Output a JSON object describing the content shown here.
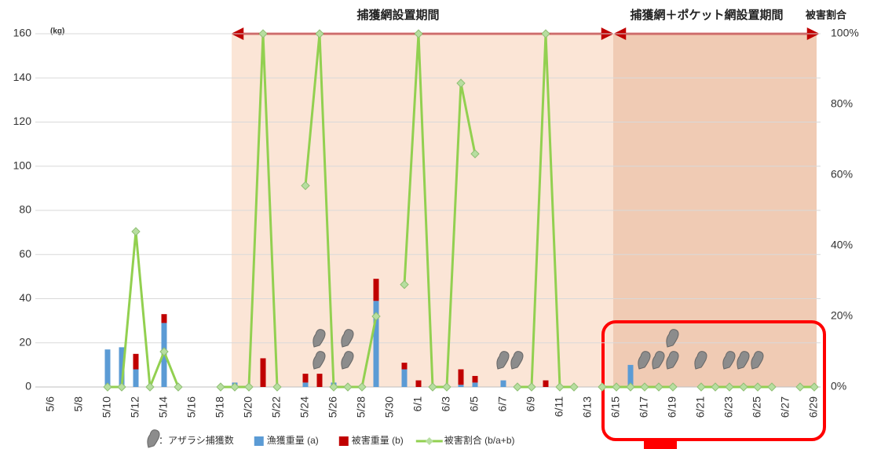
{
  "chart_data": {
    "type": "bar-line",
    "period_labels": [
      "捕獲網設置期間",
      "捕獲網＋ポケット網設置期間"
    ],
    "y_label": "(kg)",
    "y2_label": "被害割合",
    "categories": [
      "5/6",
      null,
      "5/8",
      null,
      "5/10",
      null,
      "5/12",
      null,
      "5/14",
      null,
      "5/16",
      null,
      "5/18",
      null,
      "5/20",
      null,
      "5/22",
      null,
      "5/24",
      null,
      "5/26",
      null,
      "5/28",
      null,
      "5/30",
      null,
      "6/1",
      null,
      "6/3",
      null,
      "6/5",
      null,
      "6/7",
      null,
      "6/9",
      null,
      "6/11",
      null,
      "6/13",
      null,
      "6/15",
      null,
      "6/17",
      null,
      "6/19",
      null,
      "6/21",
      null,
      "6/23",
      null,
      "6/25",
      null,
      "6/27",
      null,
      "6/29"
    ],
    "series": [
      {
        "name": "：アザラシ捕獲数",
        "color": "#8c8c8c",
        "kind": "icon",
        "values": [
          null,
          null,
          null,
          null,
          null,
          null,
          null,
          null,
          null,
          null,
          null,
          null,
          null,
          null,
          null,
          null,
          null,
          null,
          null,
          2,
          null,
          2,
          null,
          null,
          null,
          null,
          null,
          null,
          null,
          null,
          null,
          null,
          1,
          1,
          null,
          null,
          null,
          null,
          null,
          null,
          null,
          null,
          1,
          1,
          2,
          null,
          1,
          null,
          1,
          1,
          1,
          null,
          null,
          null,
          null
        ]
      },
      {
        "name": "漁獲重量 (a)",
        "color": "#5b9bd5",
        "kind": "bar",
        "values": [
          null,
          null,
          null,
          null,
          17,
          18,
          8,
          null,
          29,
          null,
          null,
          null,
          null,
          2,
          null,
          null,
          null,
          null,
          2,
          null,
          2,
          null,
          null,
          39,
          null,
          8,
          null,
          null,
          null,
          1,
          2,
          null,
          3,
          null,
          null,
          null,
          null,
          null,
          null,
          null,
          null,
          10,
          null,
          null,
          null,
          null,
          null,
          null,
          null,
          null,
          null,
          null,
          null,
          null,
          null
        ]
      },
      {
        "name": "被害重量 (b)",
        "color": "#c00000",
        "kind": "bar",
        "values": [
          null,
          null,
          null,
          null,
          null,
          null,
          7,
          null,
          4,
          null,
          null,
          null,
          null,
          null,
          null,
          13,
          null,
          null,
          4,
          6,
          null,
          null,
          null,
          10,
          null,
          3,
          3,
          null,
          null,
          7,
          3,
          null,
          null,
          null,
          null,
          3,
          null,
          null,
          null,
          null,
          null,
          null,
          null,
          null,
          null,
          null,
          null,
          null,
          null,
          null,
          null,
          null,
          null,
          null,
          null
        ]
      },
      {
        "name": "被害割合 (b/a+b)",
        "color": "#92d050",
        "kind": "line",
        "axis": "y2",
        "values": [
          null,
          null,
          null,
          null,
          0,
          0,
          44,
          0,
          10,
          0,
          null,
          null,
          0,
          0,
          0,
          100,
          0,
          null,
          57,
          100,
          0,
          0,
          0,
          20,
          null,
          29,
          100,
          0,
          0,
          86,
          66,
          null,
          null,
          0,
          0,
          100,
          0,
          0,
          null,
          0,
          0,
          0,
          0,
          0,
          0,
          null,
          0,
          0,
          0,
          0,
          0,
          0,
          null,
          0,
          0
        ]
      }
    ],
    "ylim": [
      0,
      160
    ],
    "yticks": [
      0,
      20,
      40,
      60,
      80,
      100,
      120,
      140,
      160
    ],
    "y2lim": [
      0,
      100
    ],
    "y2ticks": [
      {
        "value": 0,
        "label": "0%"
      },
      {
        "value": 20,
        "label": "20%"
      },
      {
        "value": 40,
        "label": "40%"
      },
      {
        "value": 60,
        "label": "60%"
      },
      {
        "value": 80,
        "label": "80%"
      },
      {
        "value": 100,
        "label": "100%"
      }
    ],
    "grid": true
  }
}
